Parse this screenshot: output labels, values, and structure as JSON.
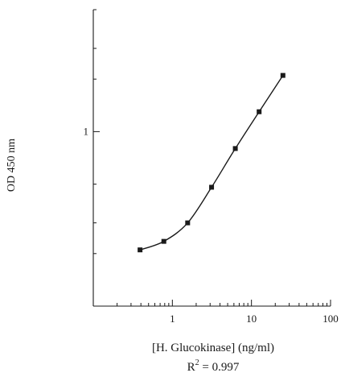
{
  "chart_data": {
    "type": "scatter",
    "xlabel": "[H. Glucokinase] (ng/ml)",
    "ylabel": "OD 450 nm",
    "annotation": {
      "prefix": "R",
      "superscript": "2",
      "suffix": " = 0.997"
    },
    "xscale": "log",
    "yscale": "log",
    "xlim": [
      0.1,
      100
    ],
    "ylim": [
      0.1,
      5
    ],
    "grid": false,
    "x_ticks": [
      "1",
      "10",
      "100"
    ],
    "y_ticks": [
      "1"
    ],
    "series": [
      {
        "x": [
          0.39,
          0.78,
          1.56,
          3.13,
          6.25,
          12.5,
          25
        ],
        "y": [
          0.21,
          0.235,
          0.3,
          0.48,
          0.8,
          1.3,
          2.1
        ]
      }
    ]
  }
}
